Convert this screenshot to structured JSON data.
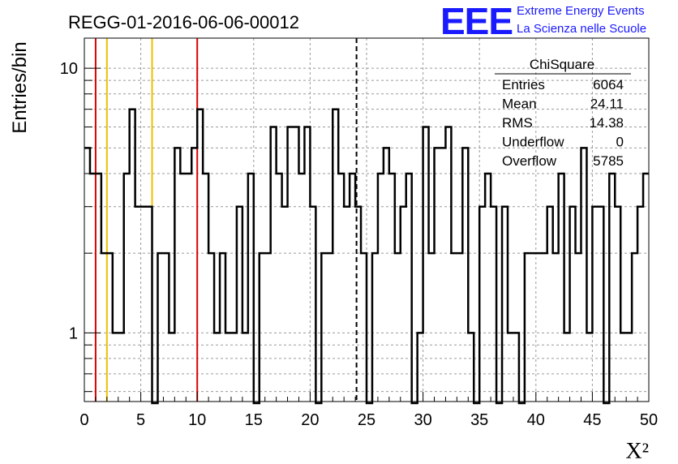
{
  "header": {
    "title": "REGG-01-2016-06-06-00012",
    "logo": "EEE",
    "logo_line1": "Extreme Energy Events",
    "logo_line2": "La Scienza nelle Scuole",
    "logo_color": "#1a1aff"
  },
  "stats_box": {
    "name": "ChiSquare",
    "rows": [
      {
        "label": "Entries",
        "value": "6064"
      },
      {
        "label": "Mean",
        "value": "24.11"
      },
      {
        "label": "RMS",
        "value": "14.38"
      },
      {
        "label": "Underflow",
        "value": "0"
      },
      {
        "label": "Overflow",
        "value": "5785"
      }
    ]
  },
  "chart_data": {
    "type": "bar",
    "histogram": "step",
    "xlabel": "Χ²",
    "ylabel": "Entries/bin",
    "xlim": [
      0,
      50
    ],
    "ylim": [
      0.55,
      13
    ],
    "yscale": "log",
    "grid": true,
    "legend": "top-right",
    "x_ticks": [
      0,
      5,
      10,
      15,
      20,
      25,
      30,
      35,
      40,
      45,
      50
    ],
    "y_tick_labels": [
      {
        "value": 1,
        "label": "1"
      },
      {
        "value": 10,
        "label": "10"
      }
    ],
    "bin_width": 0.5,
    "bin_low_edges": [
      0,
      0.5,
      1,
      1.5,
      2,
      2.5,
      3,
      3.5,
      4,
      4.5,
      5,
      5.5,
      6,
      6.5,
      7,
      7.5,
      8,
      8.5,
      9,
      9.5,
      10,
      10.5,
      11,
      11.5,
      12,
      12.5,
      13,
      13.5,
      14,
      14.5,
      15,
      15.5,
      16,
      16.5,
      17,
      17.5,
      18,
      18.5,
      19,
      19.5,
      20,
      20.5,
      21,
      21.5,
      22,
      22.5,
      23,
      23.5,
      24,
      24.5,
      25,
      25.5,
      26,
      26.5,
      27,
      27.5,
      28,
      28.5,
      29,
      29.5,
      30,
      30.5,
      31,
      31.5,
      32,
      32.5,
      33,
      33.5,
      34,
      34.5,
      35,
      35.5,
      36,
      36.5,
      37,
      37.5,
      38,
      38.5,
      39,
      39.5,
      40,
      40.5,
      41,
      41.5,
      42,
      42.5,
      43,
      43.5,
      44,
      44.5,
      45,
      45.5,
      46,
      46.5,
      47,
      47.5,
      48,
      48.5,
      49,
      49.5
    ],
    "values": [
      5,
      4,
      4,
      2,
      2,
      1,
      1,
      4,
      7,
      3,
      3,
      3,
      0,
      2,
      2,
      1,
      5,
      4,
      4,
      5,
      7,
      4,
      2,
      1,
      2,
      1,
      1,
      3,
      1,
      4,
      0,
      2,
      2,
      6,
      4,
      3,
      6,
      6,
      4,
      6,
      3,
      0,
      2,
      2,
      7,
      4,
      3,
      4,
      3,
      2,
      0,
      2,
      4,
      5,
      4,
      2,
      3,
      4,
      0,
      1,
      6,
      2,
      5,
      5,
      6,
      2,
      2,
      5,
      1,
      0,
      3,
      4,
      3,
      0,
      3,
      1,
      1,
      0,
      2,
      2,
      2,
      2,
      3,
      2,
      4,
      1,
      3,
      2,
      5,
      1,
      3,
      3,
      0,
      4,
      3,
      1,
      1,
      2,
      3,
      4
    ],
    "vertical_lines": [
      {
        "x": 1,
        "color": "#dd0000",
        "style": "solid"
      },
      {
        "x": 2,
        "color": "#f0c000",
        "style": "solid"
      },
      {
        "x": 6,
        "color": "#f0c000",
        "style": "solid"
      },
      {
        "x": 10,
        "color": "#dd0000",
        "style": "solid"
      },
      {
        "x": 24.11,
        "color": "#000000",
        "style": "dashed"
      }
    ]
  }
}
